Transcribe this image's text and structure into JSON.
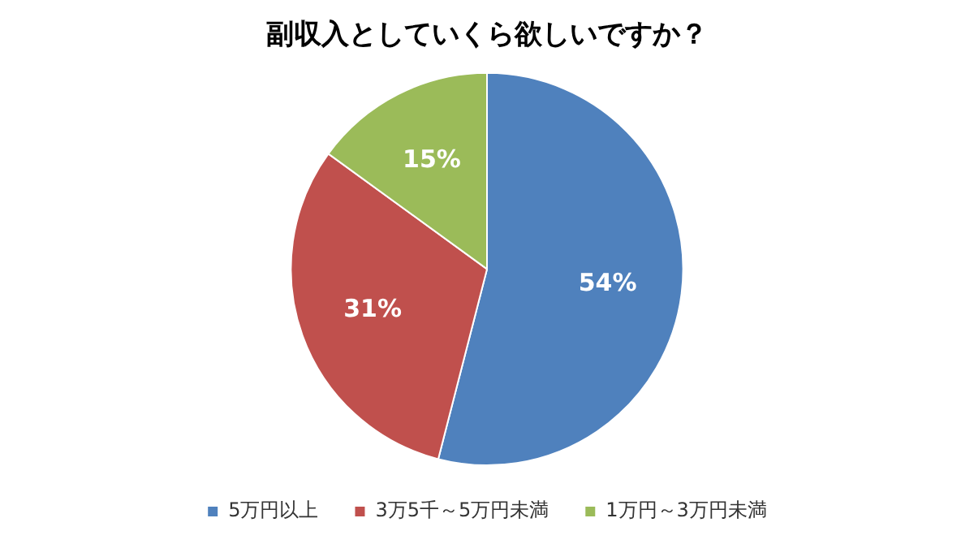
{
  "chart_data": {
    "type": "pie",
    "title": "副収入としていくら欲しいですか？",
    "categories": [
      "5万円以上",
      "3万5千～5万円未満",
      "1万円～3万円未満"
    ],
    "values": [
      54,
      31,
      15
    ],
    "colors": [
      "#4f81bd",
      "#c0504d",
      "#9bbb59"
    ],
    "value_labels": [
      "54%",
      "31%",
      "15%"
    ],
    "legend": "bottom"
  }
}
